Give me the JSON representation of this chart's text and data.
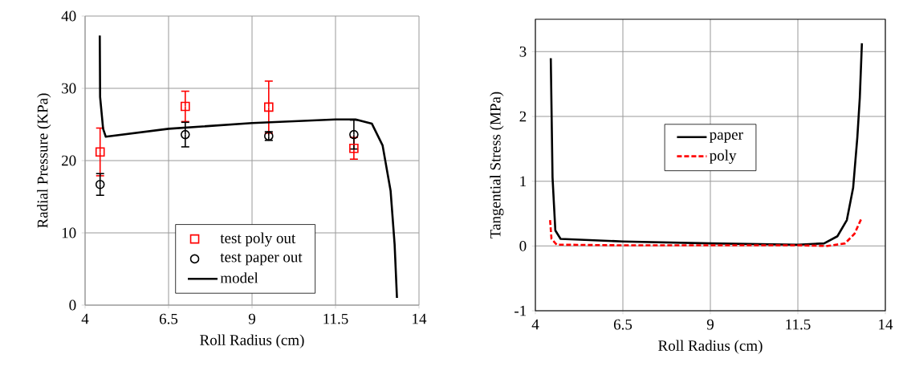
{
  "chart_data": [
    {
      "type": "scatter",
      "xlabel": "Roll Radius (cm)",
      "ylabel": "Radial Pressure (KPa)",
      "xlim": [
        4,
        14
      ],
      "ylim": [
        0,
        40
      ],
      "xticks": [
        4,
        6.5,
        9,
        11.5,
        14
      ],
      "yticks": [
        0,
        10,
        20,
        30,
        40
      ],
      "grid": true,
      "legend": "bottom",
      "series": [
        {
          "name": "test poly out",
          "type": "scatter",
          "color": "#ff0000",
          "marker": "square",
          "x": [
            4.45,
            7.0,
            9.5,
            12.05
          ],
          "values": [
            21.2,
            27.5,
            27.4,
            21.7
          ],
          "errors": [
            3.3,
            2.1,
            3.6,
            1.5
          ]
        },
        {
          "name": "test paper out",
          "type": "scatter",
          "color": "#000000",
          "marker": "circle",
          "x": [
            4.45,
            7.0,
            9.5,
            12.05
          ],
          "values": [
            16.7,
            23.6,
            23.4,
            23.6
          ],
          "errors": [
            1.5,
            1.7,
            0.6,
            2.0
          ]
        },
        {
          "name": "model",
          "type": "line",
          "color": "#000000",
          "line_style": "solid",
          "x": [
            4.44,
            4.45,
            4.54,
            4.62,
            6.5,
            9.0,
            11.5,
            12.1,
            12.59,
            12.91,
            13.15,
            13.27,
            13.34
          ],
          "values": [
            37.3,
            28.8,
            24.4,
            23.3,
            24.4,
            25.2,
            25.7,
            25.7,
            25.1,
            22.1,
            15.8,
            8.4,
            1.0
          ]
        }
      ]
    },
    {
      "type": "line",
      "xlabel": "Roll Radius (cm)",
      "ylabel": "Tangential Stress (MPa)",
      "xlim": [
        4,
        14
      ],
      "ylim": [
        -1,
        3.5
      ],
      "xticks": [
        4,
        6.5,
        9,
        11.5,
        14
      ],
      "yticks": [
        -1,
        0,
        1,
        2,
        3
      ],
      "grid": true,
      "legend": "center",
      "series": [
        {
          "name": "paper",
          "color": "#000000",
          "line_style": "solid",
          "x": [
            4.44,
            4.49,
            4.57,
            4.72,
            6.5,
            9.0,
            11.5,
            12.25,
            12.63,
            12.9,
            13.08,
            13.2,
            13.27,
            13.33
          ],
          "values": [
            2.9,
            1.06,
            0.24,
            0.11,
            0.07,
            0.04,
            0.02,
            0.04,
            0.15,
            0.4,
            0.9,
            1.68,
            2.29,
            3.13
          ]
        },
        {
          "name": "poly",
          "color": "#ff0000",
          "line_style": "dashed",
          "x": [
            4.42,
            4.46,
            4.61,
            6.5,
            9.0,
            11.5,
            12.35,
            12.85,
            13.12,
            13.33
          ],
          "values": [
            0.4,
            0.11,
            0.02,
            0.01,
            0.01,
            0.01,
            0.0,
            0.04,
            0.19,
            0.44
          ]
        }
      ]
    }
  ]
}
